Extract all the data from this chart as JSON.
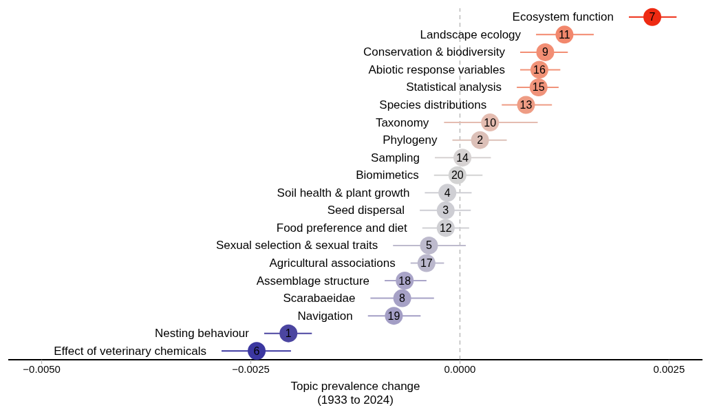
{
  "chart_data": {
    "type": "scatter",
    "orientation": "horizontal",
    "xlabel": "Topic prevalence change\n(1933 to 2024)",
    "categories": [
      "Ecosystem function",
      "Landscape ecology",
      "Conservation & biodiversity",
      "Abiotic response variables",
      "Statistical analysis",
      "Species distributions",
      "Taxonomy",
      "Phylogeny",
      "Sampling",
      "Biomimetics",
      "Soil health & plant growth",
      "Seed dispersal",
      "Food preference and diet",
      "Sexual selection & sexual traits",
      "Agricultural associations",
      "Assemblage structure",
      "Scarabaeidae",
      "Navigation",
      "Nesting behaviour",
      "Effect of veterinary chemicals"
    ],
    "values": [
      0.0023,
      0.00125,
      0.00102,
      0.00095,
      0.00094,
      0.00079,
      0.00036,
      0.00024,
      3e-05,
      -3e-05,
      -0.00015,
      -0.00017,
      -0.00017,
      -0.00037,
      -0.0004,
      -0.00066,
      -0.00069,
      -0.00079,
      -0.00205,
      -0.00243
    ],
    "errors": [
      [
        0.00202,
        0.00259
      ],
      [
        0.00091,
        0.0016
      ],
      [
        0.00072,
        0.00129
      ],
      [
        0.00072,
        0.0012
      ],
      [
        0.00068,
        0.00118
      ],
      [
        0.0005,
        0.0011
      ],
      [
        -0.00019,
        0.00093
      ],
      [
        -9e-05,
        0.00056
      ],
      [
        -0.0003,
        0.00037
      ],
      [
        -0.00031,
        0.00027
      ],
      [
        -0.00042,
        0.00014
      ],
      [
        -0.00048,
        0.00013
      ],
      [
        -0.00045,
        0.00011
      ],
      [
        -0.0008,
        7e-05
      ],
      [
        -0.00059,
        -0.00019
      ],
      [
        -0.0009,
        -0.0004
      ],
      [
        -0.00107,
        -0.00031
      ],
      [
        -0.0011,
        -0.00047
      ],
      [
        -0.00234,
        -0.00177
      ],
      [
        -0.00285,
        -0.00202
      ]
    ],
    "colors": [
      "#ee2a12",
      "#f2876c",
      "#f28e74",
      "#f19277",
      "#f0937a",
      "#ee9c84",
      "#e4bcb0",
      "#dcc0b8",
      "#d6d2d2",
      "#d3d3d3",
      "#cfcfd4",
      "#cdcdd3",
      "#cfcfd3",
      "#bdbacd",
      "#bab7cc",
      "#a9a4c8",
      "#a6a1c6",
      "#a39ec5",
      "#4b45a0",
      "#3b37a0"
    ],
    "annotations": [
      {
        "text": "7",
        "x": 0.0023,
        "y": "Ecosystem function"
      },
      {
        "text": "11",
        "x": 0.00125,
        "y": "Landscape ecology"
      },
      {
        "text": "9",
        "x": 0.00102,
        "y": "Conservation & biodiversity"
      },
      {
        "text": "16",
        "x": 0.00095,
        "y": "Abiotic response variables"
      },
      {
        "text": "15",
        "x": 0.00094,
        "y": "Statistical analysis"
      },
      {
        "text": "13",
        "x": 0.00079,
        "y": "Species distributions"
      },
      {
        "text": "10",
        "x": 0.00036,
        "y": "Taxonomy"
      },
      {
        "text": "2",
        "x": 0.00024,
        "y": "Phylogeny"
      },
      {
        "text": "14",
        "x": 3e-05,
        "y": "Sampling"
      },
      {
        "text": "20",
        "x": -3e-05,
        "y": "Biomimetics"
      },
      {
        "text": "4",
        "x": -0.00015,
        "y": "Soil health & plant growth"
      },
      {
        "text": "3",
        "x": -0.00017,
        "y": "Seed dispersal"
      },
      {
        "text": "12",
        "x": -0.00017,
        "y": "Food preference and diet"
      },
      {
        "text": "5",
        "x": -0.00037,
        "y": "Sexual selection & sexual traits"
      },
      {
        "text": "17",
        "x": -0.0004,
        "y": "Agricultural associations"
      },
      {
        "text": "18",
        "x": -0.00066,
        "y": "Assemblage structure"
      },
      {
        "text": "8",
        "x": -0.00069,
        "y": "Scarabaeidae"
      },
      {
        "text": "19",
        "x": -0.00079,
        "y": "Navigation"
      },
      {
        "text": "1",
        "x": -0.00205,
        "y": "Nesting behaviour"
      },
      {
        "text": "6",
        "x": -0.00243,
        "y": "Effect of veterinary chemicals"
      }
    ],
    "xlim": [
      -0.0054,
      0.0029
    ],
    "xticks": [
      {
        "value": -0.005,
        "label": "−0.0050"
      },
      {
        "value": -0.0025,
        "label": "−0.0025"
      },
      {
        "value": 0,
        "label": "0.0000"
      },
      {
        "value": 0.0025,
        "label": "0.0025"
      }
    ],
    "ref_lines": [
      {
        "axis": "x",
        "value": 0,
        "color": "#bbbbbb",
        "line_style": "dashed"
      }
    ],
    "marker": "circle",
    "grid": false
  }
}
